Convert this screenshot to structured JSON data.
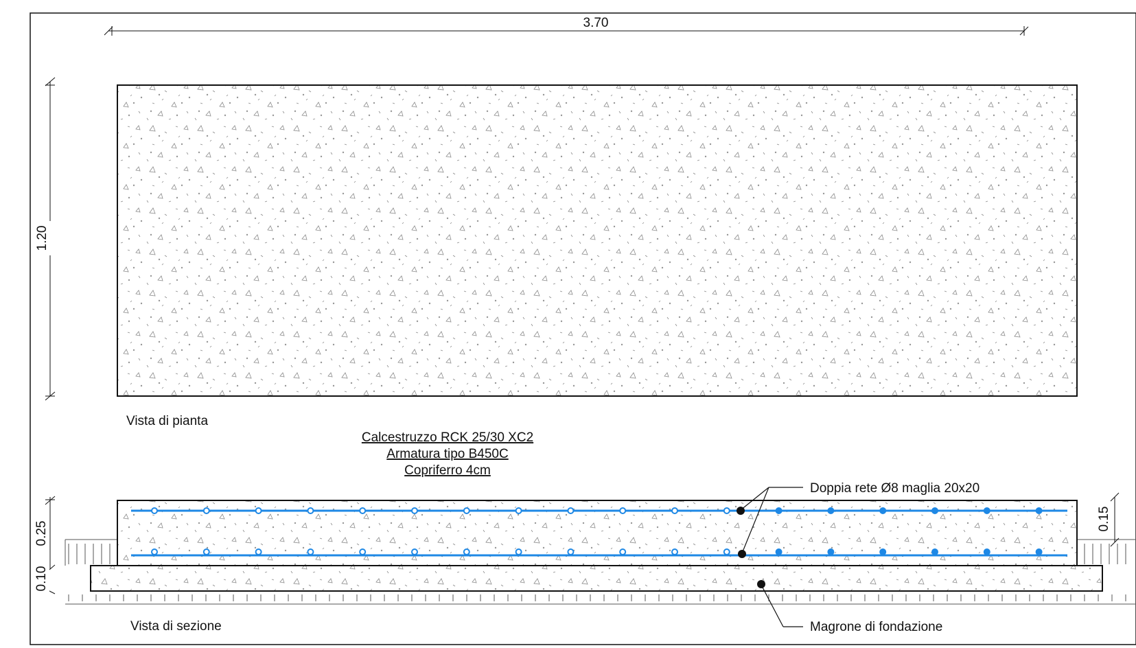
{
  "dimensions": {
    "overall_width": "3.70",
    "plan_height": "1.20",
    "slab_thickness": "0.25",
    "lean_concrete_thickness": "0.10",
    "cover_offset": "0.15"
  },
  "views": {
    "plan": "Vista di pianta",
    "section": "Vista di sezione"
  },
  "specs": {
    "concrete": "Calcestruzzo RCK 25/30 XC2",
    "reinforcement": "Armatura tipo B450C",
    "cover": "Copriferro 4cm"
  },
  "callouts": {
    "mesh": "Doppia rete Ø8 maglia 20x20",
    "lean": "Magrone di fondazione"
  },
  "colors": {
    "rebar": "#1e88e5",
    "line": "#111111",
    "hatch": "#8a8a8a"
  }
}
